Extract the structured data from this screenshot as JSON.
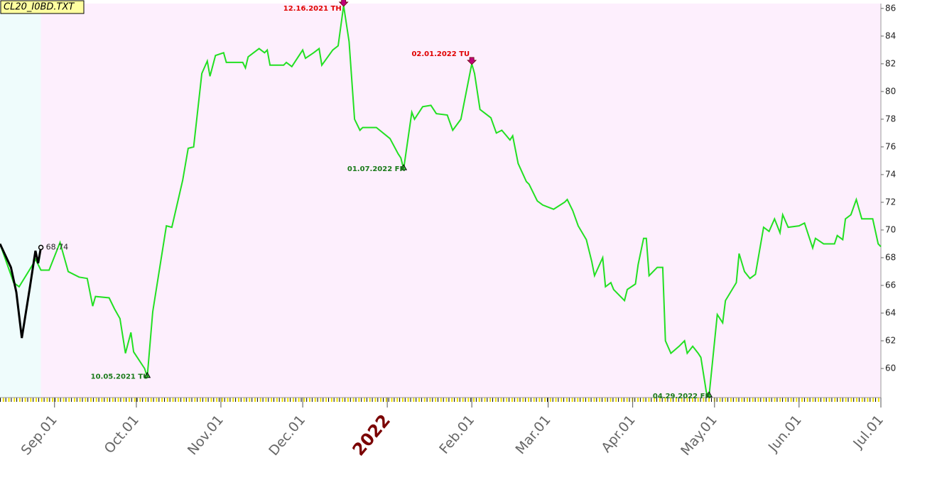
{
  "chart_data": {
    "type": "line",
    "title": "CL20_I0BD.TXT",
    "xlim": [
      "2021-08-12",
      "2022-07-01"
    ],
    "ylim": [
      57.9,
      86.35
    ],
    "yticks": [
      60,
      62,
      64,
      66,
      68,
      70,
      72,
      74,
      76,
      78,
      80,
      82,
      84,
      86
    ],
    "xticks": [
      {
        "value": "2021-09-01",
        "label": "Sep.01"
      },
      {
        "value": "2021-10-01",
        "label": "Oct.01"
      },
      {
        "value": "2021-11-01",
        "label": "Nov.01"
      },
      {
        "value": "2021-12-01",
        "label": "Dec.01"
      },
      {
        "value": "2022-01-01",
        "label": "2022"
      },
      {
        "value": "2022-02-01",
        "label": "Feb.01"
      },
      {
        "value": "2022-03-01",
        "label": "Mar.01"
      },
      {
        "value": "2022-04-01",
        "label": "Apr.01"
      },
      {
        "value": "2022-05-01",
        "label": "May.01"
      },
      {
        "value": "2022-06-01",
        "label": "Jun.01"
      },
      {
        "value": "2022-07-01",
        "label": "Jul.01"
      }
    ],
    "background_bands": [
      {
        "from": "2021-08-12",
        "to": "2021-08-27",
        "color": "#effcfc"
      },
      {
        "from": "2021-08-27",
        "to": "2022-07-01",
        "color": "#fdeffd"
      }
    ],
    "series": [
      {
        "color": "#22e022",
        "x": [
          "2021-08-12",
          "2021-08-17",
          "2021-08-19",
          "2021-08-24",
          "2021-08-25",
          "2021-08-27",
          "2021-08-30",
          "2021-09-03",
          "2021-09-06",
          "2021-09-10",
          "2021-09-13",
          "2021-09-15",
          "2021-09-16",
          "2021-09-21",
          "2021-09-23",
          "2021-09-25",
          "2021-09-27",
          "2021-09-29",
          "2021-09-30",
          "2021-10-04",
          "2021-10-05",
          "2021-10-07",
          "2021-10-12",
          "2021-10-14",
          "2021-10-18",
          "2021-10-20",
          "2021-10-22",
          "2021-10-25",
          "2021-10-27",
          "2021-10-28",
          "2021-10-30",
          "2021-11-02",
          "2021-11-03",
          "2021-11-09",
          "2021-11-10",
          "2021-11-11",
          "2021-11-15",
          "2021-11-17",
          "2021-11-18",
          "2021-11-19",
          "2021-11-24",
          "2021-11-25",
          "2021-11-27",
          "2021-12-01",
          "2021-12-02",
          "2021-12-05",
          "2021-12-07",
          "2021-12-08",
          "2021-12-12",
          "2021-12-14",
          "2021-12-16",
          "2021-12-18",
          "2021-12-20",
          "2021-12-22",
          "2021-12-23",
          "2021-12-28",
          "2022-01-02",
          "2022-01-05",
          "2022-01-06",
          "2022-01-07",
          "2022-01-10",
          "2022-01-11",
          "2022-01-14",
          "2022-01-17",
          "2022-01-19",
          "2022-01-23",
          "2022-01-25",
          "2022-01-28",
          "2022-02-01",
          "2022-02-02",
          "2022-02-04",
          "2022-02-08",
          "2022-02-10",
          "2022-02-12",
          "2022-02-15",
          "2022-02-16",
          "2022-02-18",
          "2022-02-21",
          "2022-02-22",
          "2022-02-25",
          "2022-02-27",
          "2022-03-03",
          "2022-03-07",
          "2022-03-08",
          "2022-03-10",
          "2022-03-12",
          "2022-03-15",
          "2022-03-17",
          "2022-03-18",
          "2022-03-21",
          "2022-03-22",
          "2022-03-24",
          "2022-03-25",
          "2022-03-29",
          "2022-03-30",
          "2022-04-02",
          "2022-04-03",
          "2022-04-05",
          "2022-04-06",
          "2022-04-07",
          "2022-04-10",
          "2022-04-12",
          "2022-04-13",
          "2022-04-15",
          "2022-04-18",
          "2022-04-20",
          "2022-04-21",
          "2022-04-23",
          "2022-04-25",
          "2022-04-26",
          "2022-04-28",
          "2022-04-29",
          "2022-05-02",
          "2022-05-04",
          "2022-05-05",
          "2022-05-09",
          "2022-05-10",
          "2022-05-12",
          "2022-05-14",
          "2022-05-16",
          "2022-05-19",
          "2022-05-21",
          "2022-05-23",
          "2022-05-25",
          "2022-05-26",
          "2022-05-28",
          "2022-06-01",
          "2022-06-03",
          "2022-06-06",
          "2022-06-07",
          "2022-06-10",
          "2022-06-14",
          "2022-06-15",
          "2022-06-17",
          "2022-06-18",
          "2022-06-20",
          "2022-06-22",
          "2022-06-24",
          "2022-06-28",
          "2022-06-30",
          "2022-07-01"
        ],
        "values": [
          69.0,
          66.2,
          65.9,
          67.5,
          67.9,
          67.1,
          67.1,
          69.1,
          67.0,
          66.6,
          66.5,
          64.5,
          65.2,
          65.1,
          64.3,
          63.6,
          61.1,
          62.6,
          61.2,
          60.0,
          59.4,
          64.1,
          70.3,
          70.2,
          73.6,
          75.9,
          76.0,
          81.3,
          82.2,
          81.1,
          82.6,
          82.8,
          82.1,
          82.1,
          81.7,
          82.5,
          83.1,
          82.8,
          83.0,
          81.9,
          81.9,
          82.1,
          81.8,
          83.0,
          82.4,
          82.8,
          83.1,
          81.9,
          83.0,
          83.3,
          86.2,
          83.6,
          78.0,
          77.2,
          77.4,
          77.4,
          76.6,
          75.5,
          75.2,
          74.4,
          78.5,
          78.0,
          78.9,
          79.0,
          78.4,
          78.3,
          77.2,
          78.0,
          82.0,
          81.3,
          78.7,
          78.1,
          77.0,
          77.2,
          76.5,
          76.8,
          74.8,
          73.5,
          73.3,
          72.1,
          71.8,
          71.5,
          72.0,
          72.2,
          71.4,
          70.3,
          69.3,
          67.7,
          66.7,
          68.0,
          65.9,
          66.2,
          65.7,
          64.9,
          65.7,
          66.1,
          67.5,
          69.4,
          69.4,
          66.7,
          67.3,
          67.3,
          62.0,
          61.1,
          61.6,
          62.0,
          61.1,
          61.6,
          61.1,
          60.8,
          58.3,
          58.0,
          63.9,
          63.3,
          64.9,
          66.2,
          68.3,
          67.0,
          66.5,
          66.8,
          70.2,
          69.9,
          70.8,
          69.8,
          71.1,
          70.2,
          70.3,
          70.5,
          68.7,
          69.4,
          69.0,
          69.0,
          69.6,
          69.3,
          70.8,
          71.1,
          72.2,
          70.8,
          70.8,
          69.0,
          68.8
        ]
      },
      {
        "color": "#000000",
        "x": [
          "2021-08-12",
          "2021-08-16",
          "2021-08-18",
          "2021-08-20",
          "2021-08-23",
          "2021-08-25",
          "2021-08-26",
          "2021-08-27"
        ],
        "values": [
          69.0,
          67.3,
          65.5,
          62.2,
          65.9,
          68.5,
          67.6,
          68.74
        ]
      }
    ],
    "annotations": [
      {
        "text": "12.16.2021 TH",
        "x": "2021-12-16",
        "y": 86.2,
        "color": "#e00000",
        "kind": "high"
      },
      {
        "text": "02.01.2022 TU",
        "x": "2022-02-01",
        "y": 82.0,
        "color": "#e00000",
        "kind": "high"
      },
      {
        "text": "01.07.2022 FR",
        "x": "2022-01-07",
        "y": 74.4,
        "color": "#1a7a1a",
        "kind": "low"
      },
      {
        "text": "10.05.2021 TU",
        "x": "2021-10-05",
        "y": 59.4,
        "color": "#1a7a1a",
        "kind": "low"
      },
      {
        "text": "04.29.2022 FR",
        "x": "2022-04-29",
        "y": 58.0,
        "color": "#1a7a1a",
        "kind": "low"
      }
    ]
  }
}
